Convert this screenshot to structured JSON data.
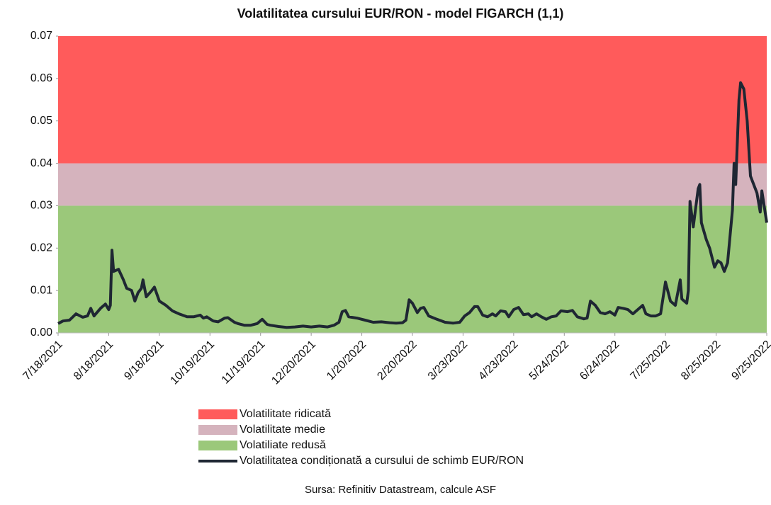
{
  "chart_data": {
    "type": "line",
    "title": "Volatilitatea cursului EUR/RON - model FIGARCH (1,1)",
    "source": "Sursa: Refinitiv Datastream, calcule ASF",
    "bands": [
      {
        "name": "Volatiliate redusă",
        "color": "#9bc87a",
        "value": 0.03
      },
      {
        "name": "Volatilitate medie",
        "color": "#d5b3bd",
        "value": 0.01
      },
      {
        "name": "Volatilitate ridicată",
        "color": "#ff5b5b",
        "value": 0.03
      }
    ],
    "legend_order": [
      2,
      1,
      0
    ],
    "xlim": [
      "7/18/2021",
      "9/25/2022"
    ],
    "xticks": [
      "7/18/2021",
      "8/18/2021",
      "9/18/2021",
      "10/19/2021",
      "11/19/2021",
      "12/20/2021",
      "1/20/2022",
      "2/20/2022",
      "3/23/2022",
      "4/23/2022",
      "5/24/2022",
      "6/24/2022",
      "7/25/2022",
      "8/25/2022",
      "9/25/2022"
    ],
    "ylim": [
      0,
      0.07
    ],
    "yticks": [
      {
        "value": 0,
        "label": "0.00"
      },
      {
        "value": 0.01,
        "label": "0.01"
      },
      {
        "value": 0.02,
        "label": "0.02"
      },
      {
        "value": 0.03,
        "label": "0.03"
      },
      {
        "value": 0.04,
        "label": "0.04"
      },
      {
        "value": 0.05,
        "label": "0.05"
      },
      {
        "value": 0.06,
        "label": "0.06"
      },
      {
        "value": 0.07,
        "label": "0.07"
      }
    ],
    "x": [
      "7/18/2021",
      "7/21/2021",
      "7/25/2021",
      "7/29/2021",
      "8/2/2021",
      "8/5/2021",
      "8/7/2021",
      "8/9/2021",
      "8/13/2021",
      "8/16/2021",
      "8/18/2021",
      "8/19/2021",
      "8/20/2021",
      "8/21/2021",
      "8/24/2021",
      "8/27/2021",
      "8/29/2021",
      "9/1/2021",
      "9/3/2021",
      "9/5/2021",
      "9/7/2021",
      "9/8/2021",
      "9/10/2021",
      "9/13/2021",
      "9/15/2021",
      "9/18/2021",
      "9/22/2021",
      "9/26/2021",
      "9/30/2021",
      "10/5/2021",
      "10/9/2021",
      "10/13/2021",
      "10/15/2021",
      "10/17/2021",
      "10/21/2021",
      "10/24/2021",
      "10/28/2021",
      "10/30/2021",
      "11/3/2021",
      "11/5/2021",
      "11/9/2021",
      "11/13/2021",
      "11/17/2021",
      "11/20/2021",
      "11/23/2021",
      "11/25/2021",
      "11/30/2021",
      "12/5/2021",
      "12/10/2021",
      "12/15/2021",
      "12/20/2021",
      "12/25/2021",
      "12/30/2021",
      "1/3/2022",
      "1/6/2022",
      "1/8/2022",
      "1/10/2022",
      "1/12/2022",
      "1/17/2022",
      "1/22/2022",
      "1/27/2022",
      "2/1/2022",
      "2/6/2022",
      "2/10/2022",
      "2/14/2022",
      "2/16/2022",
      "2/18/2022",
      "2/20/2022",
      "2/23/2022",
      "2/25/2022",
      "2/27/2022",
      "3/2/2022",
      "3/7/2022",
      "3/12/2022",
      "3/17/2022",
      "3/21/2022",
      "3/24/2022",
      "3/27/2022",
      "3/30/2022",
      "4/1/2022",
      "4/4/2022",
      "4/7/2022",
      "4/10/2022",
      "4/12/2022",
      "4/15/2022",
      "4/18/2022",
      "4/20/2022",
      "4/23/2022",
      "4/26/2022",
      "4/29/2022",
      "5/2/2022",
      "5/4/2022",
      "5/7/2022",
      "5/10/2022",
      "5/13/2022",
      "5/16/2022",
      "5/19/2022",
      "5/22/2022",
      "5/26/2022",
      "5/29/2022",
      "6/1/2022",
      "6/5/2022",
      "6/7/2022",
      "6/9/2022",
      "6/12/2022",
      "6/15/2022",
      "6/18/2022",
      "6/21/2022",
      "6/24/2022",
      "6/26/2022",
      "6/29/2022",
      "7/2/2022",
      "7/5/2022",
      "7/8/2022",
      "7/11/2022",
      "7/13/2022",
      "7/16/2022",
      "7/19/2022",
      "7/22/2022",
      "7/25/2022",
      "7/28/2022",
      "7/31/2022",
      "8/3/2022",
      "8/4/2022",
      "8/7/2022",
      "8/8/2022",
      "8/9/2022",
      "8/11/2022",
      "8/14/2022",
      "8/15/2022",
      "8/16/2022",
      "8/19/2022",
      "8/21/2022",
      "8/24/2022",
      "8/26/2022",
      "8/28/2022",
      "8/30/2022",
      "9/1/2022",
      "9/4/2022",
      "9/5/2022",
      "9/6/2022",
      "9/8/2022",
      "9/9/2022",
      "9/11/2022",
      "9/13/2022",
      "9/15/2022",
      "9/19/2022",
      "9/21/2022",
      "9/22/2022",
      "9/25/2022"
    ],
    "series": [
      {
        "name": "Volatilitatea condiționată a cursului de schimb EUR/RON",
        "color": "#1f2733",
        "values": [
          0.0022,
          0.0028,
          0.003,
          0.0045,
          0.0037,
          0.004,
          0.0058,
          0.004,
          0.0058,
          0.0068,
          0.0055,
          0.0065,
          0.0195,
          0.0145,
          0.015,
          0.0125,
          0.0105,
          0.01,
          0.0075,
          0.0095,
          0.0105,
          0.0125,
          0.0085,
          0.0098,
          0.0108,
          0.0075,
          0.0065,
          0.0052,
          0.0045,
          0.0038,
          0.0038,
          0.0042,
          0.0035,
          0.0038,
          0.0028,
          0.0026,
          0.0035,
          0.0036,
          0.0025,
          0.0022,
          0.0018,
          0.0018,
          0.0022,
          0.0032,
          0.002,
          0.0018,
          0.0015,
          0.0013,
          0.0014,
          0.0016,
          0.0014,
          0.0016,
          0.0014,
          0.0018,
          0.0025,
          0.005,
          0.0053,
          0.0038,
          0.0035,
          0.003,
          0.0025,
          0.0026,
          0.0024,
          0.0023,
          0.0024,
          0.003,
          0.0078,
          0.007,
          0.0048,
          0.0058,
          0.006,
          0.004,
          0.0032,
          0.0025,
          0.0023,
          0.0025,
          0.004,
          0.0048,
          0.0062,
          0.0062,
          0.0042,
          0.0038,
          0.0045,
          0.004,
          0.0052,
          0.005,
          0.0038,
          0.0055,
          0.006,
          0.0043,
          0.0045,
          0.0038,
          0.0045,
          0.0038,
          0.0032,
          0.0038,
          0.004,
          0.0052,
          0.005,
          0.0053,
          0.0038,
          0.0033,
          0.0035,
          0.0075,
          0.0065,
          0.0048,
          0.0045,
          0.005,
          0.0042,
          0.006,
          0.0058,
          0.0055,
          0.0045,
          0.0055,
          0.0065,
          0.0045,
          0.004,
          0.004,
          0.0045,
          0.012,
          0.0075,
          0.0065,
          0.0125,
          0.008,
          0.007,
          0.01,
          0.031,
          0.025,
          0.034,
          0.035,
          0.026,
          0.022,
          0.02,
          0.0155,
          0.017,
          0.0165,
          0.0145,
          0.0165,
          0.029,
          0.04,
          0.035,
          0.055,
          0.059,
          0.0575,
          0.05,
          0.037,
          0.033,
          0.0285,
          0.0335,
          0.026
        ]
      }
    ]
  }
}
